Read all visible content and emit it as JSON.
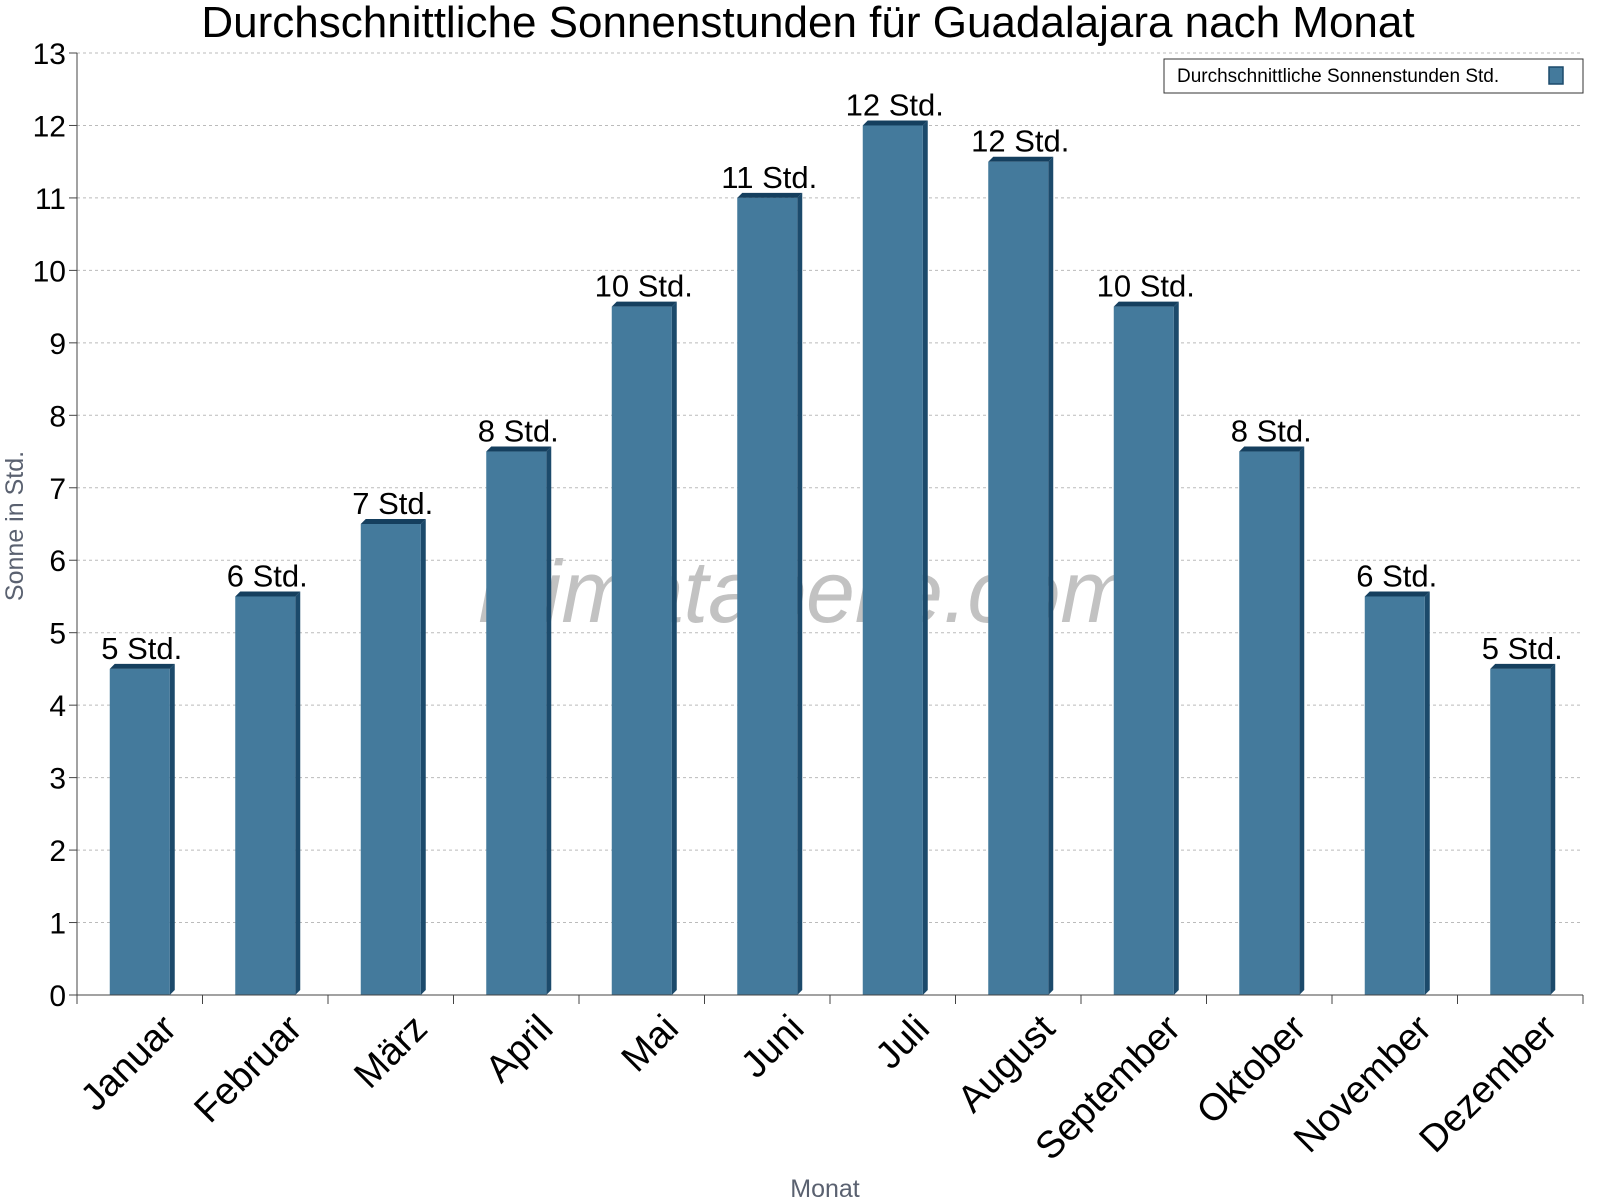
{
  "watermark": "klimatabelle.com",
  "colors": {
    "bar_face": "#447a9c",
    "bar_side": "#1c4a6b",
    "bar_top": "#153f5e",
    "grid": "#bbbbbb",
    "axis": "#444444"
  },
  "chart_data": {
    "type": "bar",
    "title": "Durchschnittliche Sonnenstunden für Guadalajara nach Monat",
    "xlabel": "Monat",
    "ylabel": "Sonne in Std.",
    "ylim": [
      0,
      13
    ],
    "yticks": [
      0,
      1,
      2,
      3,
      4,
      5,
      6,
      7,
      8,
      9,
      10,
      11,
      12,
      13
    ],
    "grid": true,
    "legend_position": "top-right",
    "categories": [
      "Januar",
      "Februar",
      "März",
      "April",
      "Mai",
      "Juni",
      "Juli",
      "August",
      "September",
      "Oktober",
      "November",
      "Dezember"
    ],
    "series": [
      {
        "name": "Durchschnittliche Sonnenstunden Std.",
        "values": [
          4.5,
          5.5,
          6.5,
          7.5,
          9.5,
          11,
          12,
          11.5,
          9.5,
          7.5,
          5.5,
          4.5
        ],
        "data_labels": [
          "5 Std.",
          "6 Std.",
          "7 Std.",
          "8 Std.",
          "10 Std.",
          "11 Std.",
          "12 Std.",
          "12 Std.",
          "10 Std.",
          "8 Std.",
          "6 Std.",
          "5 Std."
        ]
      }
    ]
  }
}
